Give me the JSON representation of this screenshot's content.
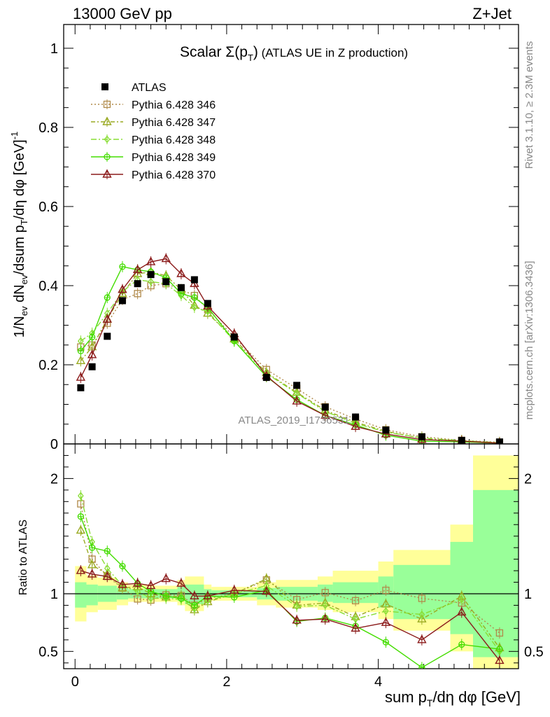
{
  "header": {
    "left": "13000 GeV pp",
    "right": "Z+Jet"
  },
  "side_text": {
    "rivet": "Rivet 3.1.10, ≥ 2.3M events",
    "mcplots": "mcplots.cern.ch [arXiv:1306.3436]"
  },
  "watermark": "ATLAS_2019_I1736531",
  "colors": {
    "data": "#000000",
    "p346": "#b08a4a",
    "p347": "#9aaa22",
    "p348": "#88dd33",
    "p349": "#44dd00",
    "p370": "#8b1a1a",
    "band_yellow": "#ffff99",
    "band_green": "#99ff99"
  },
  "chart_data": [
    {
      "type": "line",
      "title": "Scalar Σ(p_T) (ATLAS UE in Z production)",
      "ylabel": "1/N_ev dN_ev/dsum p_T/dη dφ [GeV]^-1",
      "xlim": [
        -0.15,
        5.85
      ],
      "ylim": [
        0,
        1.06
      ],
      "y_ticks": [
        "0",
        "0.2",
        "0.4",
        "0.6",
        "0.8",
        "1"
      ],
      "y_tick_values": [
        0,
        0.2,
        0.4,
        0.6,
        0.8,
        1.0
      ],
      "legend_placement": "top-left",
      "x": [
        0.075,
        0.225,
        0.425,
        0.625,
        0.825,
        1.0,
        1.2,
        1.4,
        1.575,
        1.75,
        2.1,
        2.525,
        2.925,
        3.3,
        3.7,
        4.1,
        4.575,
        5.1,
        5.6
      ],
      "series": [
        {
          "name": "ATLAS",
          "key": "data",
          "marker": "square-filled",
          "values": [
            0.142,
            0.195,
            0.272,
            0.362,
            0.405,
            0.428,
            0.41,
            0.395,
            0.415,
            0.355,
            0.27,
            0.168,
            0.148,
            0.093,
            0.068,
            0.035,
            0.018,
            0.009,
            0.005
          ]
        },
        {
          "name": "Pythia 6.428 346",
          "key": "p346",
          "marker": "square-open",
          "dash": "2,3",
          "values": [
            0.245,
            0.25,
            0.305,
            0.365,
            0.38,
            0.4,
            0.405,
            0.39,
            0.375,
            0.34,
            0.27,
            0.188,
            0.14,
            0.094,
            0.063,
            0.036,
            0.018,
            0.009,
            0.004
          ]
        },
        {
          "name": "Pythia 6.428 347",
          "key": "p347",
          "marker": "triangle-open",
          "dash": "6,3,2,3",
          "values": [
            0.21,
            0.245,
            0.315,
            0.38,
            0.43,
            0.435,
            0.425,
            0.39,
            0.35,
            0.33,
            0.265,
            0.18,
            0.13,
            0.085,
            0.055,
            0.032,
            0.014,
            0.008,
            0.003
          ]
        },
        {
          "name": "Pythia 6.428 348",
          "key": "p348",
          "marker": "diamond",
          "dash": "8,3,2,3",
          "values": [
            0.26,
            0.28,
            0.33,
            0.385,
            0.415,
            0.41,
            0.405,
            0.375,
            0.345,
            0.335,
            0.26,
            0.178,
            0.128,
            0.082,
            0.052,
            0.03,
            0.015,
            0.008,
            0.003
          ]
        },
        {
          "name": "Pythia 6.428 349",
          "key": "p349",
          "marker": "circle-cross",
          "dash": "",
          "values": [
            0.235,
            0.27,
            0.37,
            0.448,
            0.44,
            0.435,
            0.42,
            0.38,
            0.37,
            0.345,
            0.26,
            0.17,
            0.112,
            0.072,
            0.048,
            0.022,
            0.007,
            0.005,
            0.002
          ]
        },
        {
          "name": "Pythia 6.428 370",
          "key": "p370",
          "marker": "triangle-open",
          "dash": "",
          "values": [
            0.168,
            0.225,
            0.315,
            0.39,
            0.44,
            0.46,
            0.468,
            0.43,
            0.405,
            0.348,
            0.278,
            0.172,
            0.108,
            0.072,
            0.044,
            0.025,
            0.011,
            0.007,
            0.002
          ]
        }
      ]
    },
    {
      "type": "line",
      "xlabel": "sum p_T/dη dφ [GeV]",
      "ylabel": "Ratio to ATLAS",
      "xlim": [
        -0.15,
        5.85
      ],
      "ylim": [
        0.35,
        2.3
      ],
      "y_ticks": [
        "0.5",
        "1",
        "2"
      ],
      "y_tick_values": [
        0.5,
        1,
        2
      ],
      "x_ticks": [
        "0",
        "2",
        "4"
      ],
      "x_tick_values": [
        0,
        2,
        4
      ],
      "bin_edges": [
        0.0,
        0.15,
        0.3,
        0.55,
        0.7,
        0.95,
        1.05,
        1.35,
        1.45,
        1.7,
        1.8,
        2.4,
        2.65,
        3.2,
        3.4,
        4.0,
        4.2,
        4.95,
        5.25,
        5.95
      ],
      "band_yellow": [
        [
          0.76,
          1.24
        ],
        [
          0.84,
          1.16
        ],
        [
          0.86,
          1.14
        ],
        [
          0.9,
          1.1
        ],
        [
          0.93,
          1.08
        ],
        [
          0.92,
          1.08
        ],
        [
          0.93,
          1.07
        ],
        [
          0.9,
          1.12
        ],
        [
          0.85,
          1.15
        ],
        [
          0.92,
          1.08
        ],
        [
          0.94,
          1.06
        ],
        [
          0.9,
          1.1
        ],
        [
          0.88,
          1.12
        ],
        [
          0.86,
          1.15
        ],
        [
          0.84,
          1.2
        ],
        [
          0.78,
          1.28
        ],
        [
          0.68,
          1.38
        ],
        [
          0.5,
          1.6
        ],
        [
          0.3,
          2.2
        ]
      ],
      "band_green": [
        [
          0.88,
          1.1
        ],
        [
          0.9,
          1.08
        ],
        [
          0.93,
          1.07
        ],
        [
          0.95,
          1.05
        ],
        [
          0.96,
          1.04
        ],
        [
          0.95,
          1.05
        ],
        [
          0.96,
          1.04
        ],
        [
          0.94,
          1.06
        ],
        [
          0.91,
          1.08
        ],
        [
          0.96,
          1.04
        ],
        [
          0.97,
          1.03
        ],
        [
          0.95,
          1.05
        ],
        [
          0.94,
          1.06
        ],
        [
          0.93,
          1.08
        ],
        [
          0.92,
          1.1
        ],
        [
          0.88,
          1.15
        ],
        [
          0.78,
          1.25
        ],
        [
          0.65,
          1.45
        ],
        [
          0.45,
          1.9
        ]
      ],
      "x": [
        0.075,
        0.225,
        0.425,
        0.625,
        0.825,
        1.0,
        1.2,
        1.4,
        1.575,
        1.75,
        2.1,
        2.525,
        2.925,
        3.3,
        3.7,
        4.1,
        4.575,
        5.1,
        5.6
      ],
      "series": [
        {
          "name": "Pythia 6.428 346",
          "key": "p346",
          "marker": "square-open",
          "dash": "2,3",
          "values": [
            1.78,
            1.3,
            1.15,
            1.05,
            0.955,
            0.945,
            0.99,
            0.985,
            0.9,
            0.96,
            1.0,
            1.12,
            0.95,
            1.01,
            0.94,
            1.03,
            0.96,
            0.92,
            0.66
          ]
        },
        {
          "name": "Pythia 6.428 347",
          "key": "p347",
          "marker": "triangle-open",
          "dash": "6,3,2,3",
          "values": [
            1.55,
            1.25,
            1.17,
            1.05,
            1.06,
            1.0,
            0.97,
            0.98,
            0.86,
            0.93,
            1.0,
            1.13,
            0.9,
            0.92,
            0.8,
            0.91,
            0.78,
            0.98,
            0.53
          ]
        },
        {
          "name": "Pythia 6.428 348",
          "key": "p348",
          "marker": "diamond",
          "dash": "8,3,2,3",
          "values": [
            1.85,
            1.45,
            1.22,
            1.07,
            1.02,
            0.96,
            0.96,
            0.95,
            0.87,
            0.94,
            1.0,
            1.07,
            0.89,
            0.9,
            0.78,
            0.85,
            0.82,
            0.95,
            0.5
          ]
        },
        {
          "name": "Pythia 6.428 349",
          "key": "p349",
          "marker": "circle-cross",
          "dash": "",
          "values": [
            1.67,
            1.4,
            1.37,
            1.24,
            1.09,
            1.02,
            0.98,
            0.96,
            0.9,
            0.98,
            0.97,
            1.03,
            0.76,
            0.79,
            0.72,
            0.58,
            0.36,
            0.56,
            0.52
          ]
        },
        {
          "name": "Pythia 6.428 370",
          "key": "p370",
          "marker": "triangle-open",
          "dash": "",
          "values": [
            1.2,
            1.17,
            1.15,
            1.08,
            1.09,
            1.07,
            1.13,
            1.09,
            0.98,
            0.98,
            1.03,
            1.02,
            0.77,
            0.78,
            0.7,
            0.75,
            0.6,
            0.84,
            0.42
          ]
        }
      ]
    }
  ]
}
